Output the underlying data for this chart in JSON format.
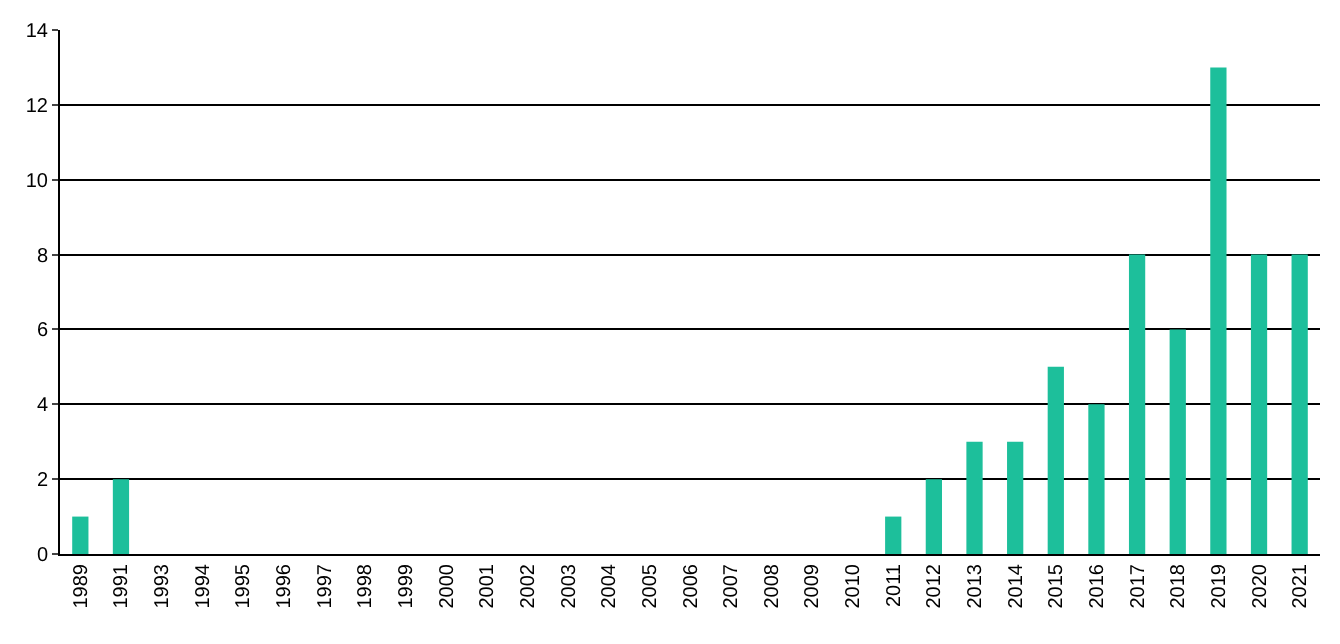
{
  "chart_data": {
    "type": "bar",
    "categories": [
      "1989",
      "1991",
      "1993",
      "1994",
      "1995",
      "1996",
      "1997",
      "1998",
      "1999",
      "2000",
      "2001",
      "2002",
      "2003",
      "2004",
      "2005",
      "2006",
      "2007",
      "2008",
      "2009",
      "2010",
      "2011",
      "2012",
      "2013",
      "2014",
      "2015",
      "2016",
      "2017",
      "2018",
      "2019",
      "2020",
      "2021"
    ],
    "values": [
      1,
      2,
      0,
      0,
      0,
      0,
      0,
      0,
      0,
      0,
      0,
      0,
      0,
      0,
      0,
      0,
      0,
      0,
      0,
      0,
      1,
      2,
      3,
      3,
      5,
      4,
      8,
      6,
      13,
      8,
      8
    ],
    "color": "#1dbf9b",
    "ylim": [
      0,
      14
    ],
    "yticks": [
      0,
      2,
      4,
      6,
      8,
      10,
      12,
      14
    ],
    "grid": "y"
  }
}
